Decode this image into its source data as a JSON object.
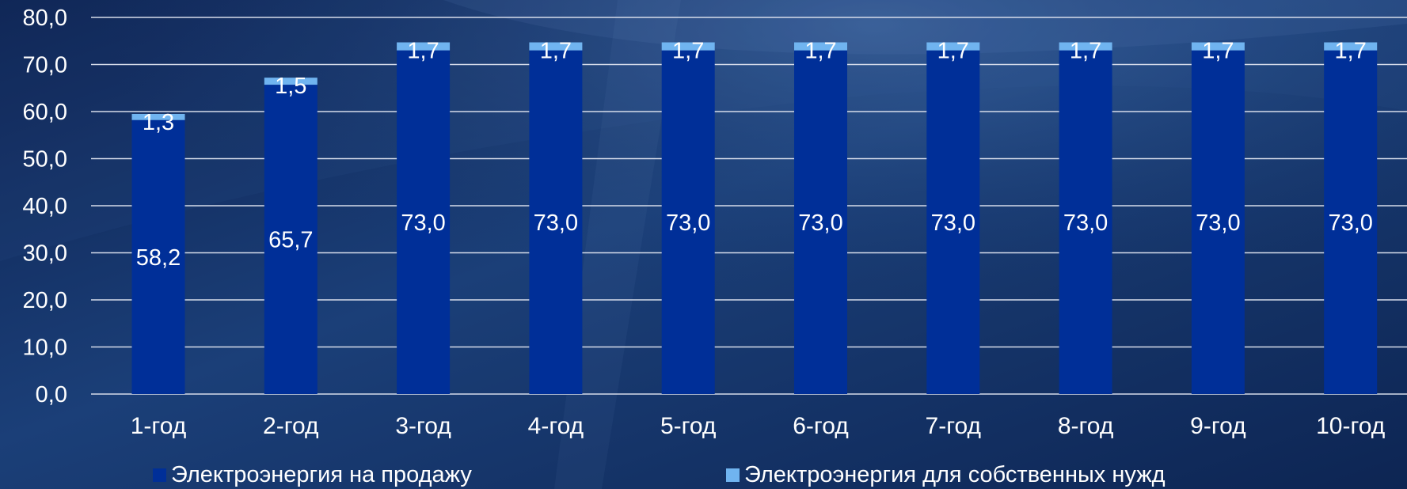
{
  "chart_data": {
    "type": "bar",
    "stacked": true,
    "title": "",
    "xlabel": "",
    "ylabel": "",
    "categories": [
      "1-год",
      "2-год",
      "3-год",
      "4-год",
      "5-год",
      "6-год",
      "7-год",
      "8-год",
      "9-год",
      "10-год"
    ],
    "series": [
      {
        "name": "Электроэнергия на продажу",
        "values": [
          58.2,
          65.7,
          73.0,
          73.0,
          73.0,
          73.0,
          73.0,
          73.0,
          73.0,
          73.0
        ],
        "labels": [
          "58,2",
          "65,7",
          "73,0",
          "73,0",
          "73,0",
          "73,0",
          "73,0",
          "73,0",
          "73,0",
          "73,0"
        ],
        "color": "#002f98"
      },
      {
        "name": "Электроэнергия для собственных нужд",
        "values": [
          1.3,
          1.5,
          1.7,
          1.7,
          1.7,
          1.7,
          1.7,
          1.7,
          1.7,
          1.7
        ],
        "labels": [
          "1,3",
          "1,5",
          "1,7",
          "1,7",
          "1,7",
          "1,7",
          "1,7",
          "1,7",
          "1,7",
          "1,7"
        ],
        "color": "#70b4f0"
      }
    ],
    "ylim": [
      0,
      80
    ],
    "yticks": [
      "0,0",
      "10,0",
      "20,0",
      "30,0",
      "40,0",
      "50,0",
      "60,0",
      "70,0",
      "80,0"
    ],
    "grid": true,
    "legend_position": "bottom"
  },
  "colors": {
    "background": "#102a5c",
    "gridline": "#d6dcea",
    "text": "#ffffff"
  }
}
